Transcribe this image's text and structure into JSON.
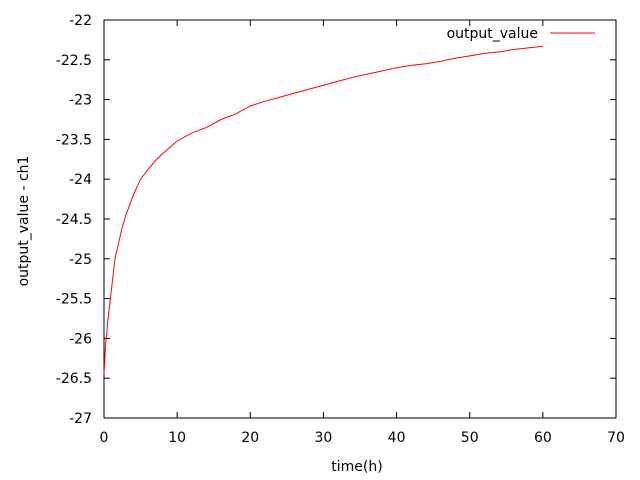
{
  "chart_data": {
    "type": "line",
    "title": "",
    "xlabel": "time(h)",
    "ylabel": "output_value - ch1",
    "xlim": [
      0,
      70
    ],
    "ylim": [
      -27,
      -22
    ],
    "x_ticks": [
      0,
      10,
      20,
      30,
      40,
      50,
      60,
      70
    ],
    "y_ticks": [
      -27,
      -26.5,
      -26,
      -25.5,
      -25,
      -24.5,
      -24,
      -23.5,
      -23,
      -22.5,
      -22
    ],
    "grid": false,
    "legend_position": "top-right",
    "series": [
      {
        "name": "output_value",
        "color": "#ff0000",
        "x": [
          0,
          0.2,
          0.5,
          1,
          1.5,
          2,
          2.5,
          3,
          4,
          5,
          6,
          7,
          8,
          9,
          10,
          12,
          14,
          16,
          18,
          20,
          22,
          24,
          26,
          28,
          30,
          32,
          34,
          36,
          38,
          40,
          42,
          44,
          46,
          48,
          50,
          52,
          54,
          56,
          58,
          60
        ],
        "y": [
          -26.45,
          -26.1,
          -25.8,
          -25.4,
          -25.0,
          -24.8,
          -24.6,
          -24.45,
          -24.2,
          -24.0,
          -23.88,
          -23.77,
          -23.68,
          -23.6,
          -23.52,
          -23.42,
          -23.35,
          -23.25,
          -23.18,
          -23.08,
          -23.02,
          -22.97,
          -22.92,
          -22.87,
          -22.82,
          -22.77,
          -22.72,
          -22.68,
          -22.64,
          -22.6,
          -22.57,
          -22.55,
          -22.52,
          -22.48,
          -22.45,
          -22.42,
          -22.4,
          -22.37,
          -22.35,
          -22.33
        ]
      }
    ]
  }
}
